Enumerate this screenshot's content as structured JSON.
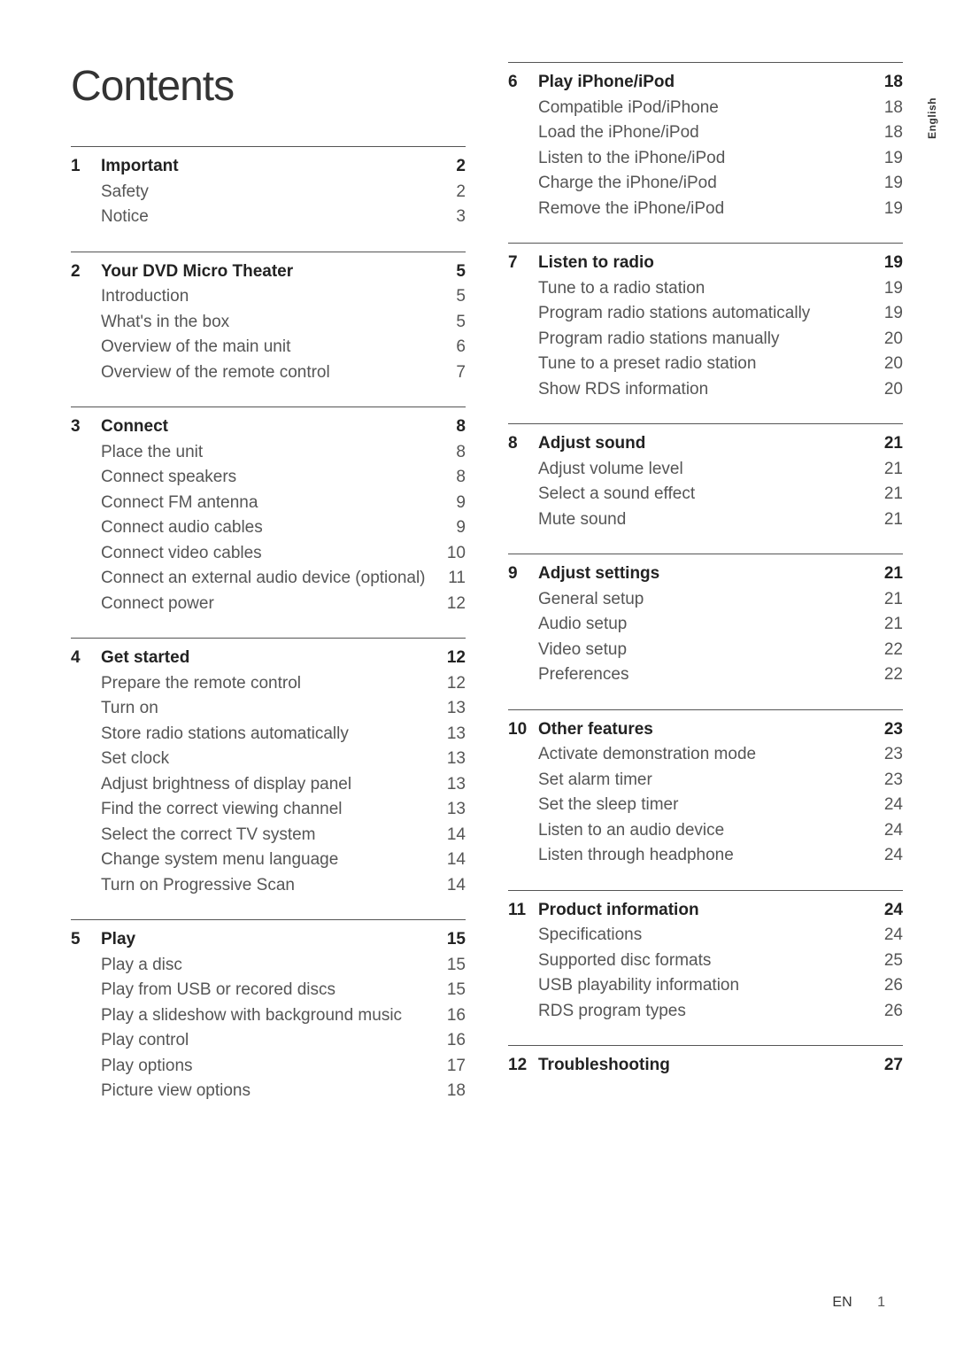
{
  "title": "Contents",
  "side_tab": "English",
  "footer": {
    "lang": "EN",
    "page": "1"
  },
  "left": [
    {
      "num": "1",
      "head": {
        "label": "Important",
        "page": "2"
      },
      "items": [
        {
          "label": "Safety",
          "page": "2"
        },
        {
          "label": "Notice",
          "page": "3"
        }
      ]
    },
    {
      "num": "2",
      "head": {
        "label": "Your DVD Micro Theater",
        "page": "5"
      },
      "items": [
        {
          "label": "Introduction",
          "page": "5"
        },
        {
          "label": "What's in the box",
          "page": "5"
        },
        {
          "label": "Overview of the main unit",
          "page": "6"
        },
        {
          "label": "Overview of the remote control",
          "page": "7"
        }
      ]
    },
    {
      "num": "3",
      "head": {
        "label": "Connect",
        "page": "8"
      },
      "items": [
        {
          "label": "Place the unit",
          "page": "8"
        },
        {
          "label": "Connect speakers",
          "page": "8"
        },
        {
          "label": "Connect FM antenna",
          "page": "9"
        },
        {
          "label": "Connect audio cables",
          "page": "9"
        },
        {
          "label": "Connect video cables",
          "page": "10"
        },
        {
          "label": "Connect an external audio device (optional)",
          "page": "11"
        },
        {
          "label": "Connect power",
          "page": "12"
        }
      ]
    },
    {
      "num": "4",
      "head": {
        "label": "Get started",
        "page": "12"
      },
      "items": [
        {
          "label": "Prepare the remote control",
          "page": "12"
        },
        {
          "label": "Turn on",
          "page": "13"
        },
        {
          "label": "Store radio stations automatically",
          "page": "13"
        },
        {
          "label": "Set clock",
          "page": "13"
        },
        {
          "label": "Adjust brightness of display panel",
          "page": "13"
        },
        {
          "label": "Find the correct viewing channel",
          "page": "13"
        },
        {
          "label": "Select the correct TV system",
          "page": "14"
        },
        {
          "label": "Change system menu language",
          "page": "14"
        },
        {
          "label": "Turn on Progressive Scan",
          "page": "14"
        }
      ]
    },
    {
      "num": "5",
      "head": {
        "label": "Play",
        "page": "15"
      },
      "items": [
        {
          "label": "Play a disc",
          "page": "15"
        },
        {
          "label": "Play from USB or recored discs",
          "page": "15"
        },
        {
          "label": "Play a slideshow with background music",
          "page": "16"
        },
        {
          "label": "Play control",
          "page": "16"
        },
        {
          "label": "Play options",
          "page": "17"
        },
        {
          "label": "Picture view options",
          "page": "18"
        }
      ]
    }
  ],
  "right": [
    {
      "num": "6",
      "head": {
        "label": "Play iPhone/iPod",
        "page": "18"
      },
      "items": [
        {
          "label": "Compatible iPod/iPhone",
          "page": "18"
        },
        {
          "label": "Load the iPhone/iPod",
          "page": "18"
        },
        {
          "label": "Listen to the iPhone/iPod",
          "page": "19"
        },
        {
          "label": "Charge the iPhone/iPod",
          "page": "19"
        },
        {
          "label": "Remove the iPhone/iPod",
          "page": "19"
        }
      ]
    },
    {
      "num": "7",
      "head": {
        "label": "Listen to radio",
        "page": "19"
      },
      "items": [
        {
          "label": "Tune to a radio station",
          "page": "19"
        },
        {
          "label": "Program radio stations automatically",
          "page": "19"
        },
        {
          "label": "Program radio stations manually",
          "page": "20"
        },
        {
          "label": "Tune to a preset radio station",
          "page": "20"
        },
        {
          "label": "Show RDS information",
          "page": "20"
        }
      ]
    },
    {
      "num": "8",
      "head": {
        "label": "Adjust sound",
        "page": "21"
      },
      "items": [
        {
          "label": "Adjust volume level",
          "page": "21"
        },
        {
          "label": "Select a sound effect",
          "page": "21"
        },
        {
          "label": "Mute sound",
          "page": "21"
        }
      ]
    },
    {
      "num": "9",
      "head": {
        "label": "Adjust settings",
        "page": "21"
      },
      "items": [
        {
          "label": "General setup",
          "page": "21"
        },
        {
          "label": "Audio setup",
          "page": "21"
        },
        {
          "label": "Video setup",
          "page": "22"
        },
        {
          "label": "Preferences",
          "page": "22"
        }
      ]
    },
    {
      "num": "10",
      "head": {
        "label": "Other features",
        "page": "23"
      },
      "items": [
        {
          "label": "Activate demonstration mode",
          "page": "23"
        },
        {
          "label": "Set alarm timer",
          "page": "23"
        },
        {
          "label": "Set the sleep timer",
          "page": "24"
        },
        {
          "label": "Listen to an audio device",
          "page": "24"
        },
        {
          "label": "Listen through headphone",
          "page": "24"
        }
      ]
    },
    {
      "num": "11",
      "head": {
        "label": "Product information",
        "page": "24"
      },
      "items": [
        {
          "label": "Specifications",
          "page": "24"
        },
        {
          "label": "Supported disc formats",
          "page": "25"
        },
        {
          "label": "USB playability information",
          "page": "26"
        },
        {
          "label": "RDS program types",
          "page": "26"
        }
      ]
    },
    {
      "num": "12",
      "head": {
        "label": "Troubleshooting",
        "page": "27"
      },
      "items": []
    }
  ]
}
